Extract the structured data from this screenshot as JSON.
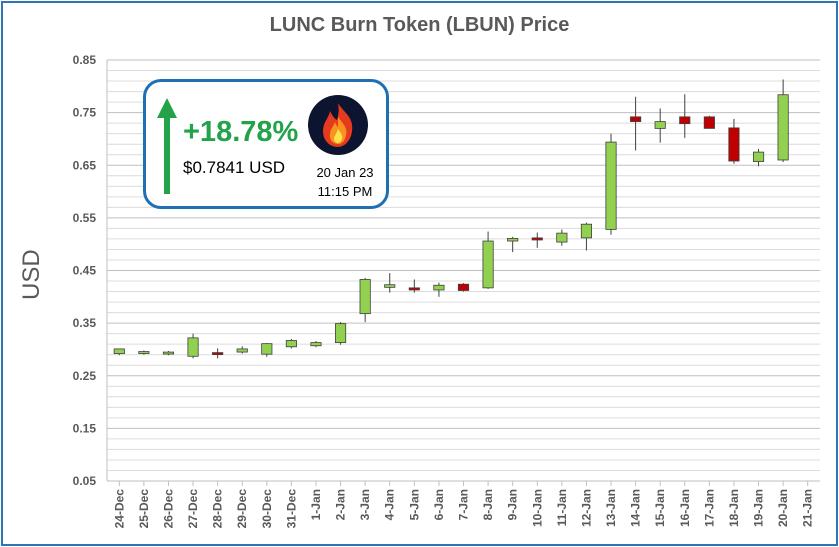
{
  "chart_data": {
    "type": "candlestick",
    "title": "LUNC Burn Token (LBUN) Price",
    "xlabel": "",
    "ylabel": "USD",
    "ylim": [
      0.05,
      0.85
    ],
    "yticks": [
      "0.85",
      "0.75",
      "0.65",
      "0.55",
      "0.45",
      "0.35",
      "0.25",
      "0.15",
      "0.05"
    ],
    "grid": true,
    "categories": [
      "24-Dec",
      "25-Dec",
      "26-Dec",
      "27-Dec",
      "28-Dec",
      "29-Dec",
      "30-Dec",
      "31-Dec",
      "1-Jan",
      "2-Jan",
      "3-Jan",
      "4-Jan",
      "5-Jan",
      "6-Jan",
      "7-Jan",
      "8-Jan",
      "9-Jan",
      "10-Jan",
      "11-Jan",
      "12-Jan",
      "13-Jan",
      "14-Jan",
      "15-Jan",
      "16-Jan",
      "17-Jan",
      "18-Jan",
      "19-Jan",
      "20-Jan",
      "21-Jan"
    ],
    "candles": [
      {
        "date": "24-Dec",
        "open": 0.292,
        "high": 0.301,
        "low": 0.289,
        "close": 0.301
      },
      {
        "date": "25-Dec",
        "open": 0.294,
        "high": 0.298,
        "low": 0.29,
        "close": 0.296
      },
      {
        "date": "26-Dec",
        "open": 0.293,
        "high": 0.297,
        "low": 0.289,
        "close": 0.295
      },
      {
        "date": "27-Dec",
        "open": 0.287,
        "high": 0.33,
        "low": 0.283,
        "close": 0.322
      },
      {
        "date": "28-Dec",
        "open": 0.294,
        "high": 0.302,
        "low": 0.283,
        "close": 0.292
      },
      {
        "date": "29-Dec",
        "open": 0.295,
        "high": 0.306,
        "low": 0.292,
        "close": 0.301
      },
      {
        "date": "30-Dec",
        "open": 0.291,
        "high": 0.312,
        "low": 0.286,
        "close": 0.311
      },
      {
        "date": "31-Dec",
        "open": 0.305,
        "high": 0.32,
        "low": 0.302,
        "close": 0.317
      },
      {
        "date": "1-Jan",
        "open": 0.307,
        "high": 0.316,
        "low": 0.304,
        "close": 0.313
      },
      {
        "date": "2-Jan",
        "open": 0.313,
        "high": 0.352,
        "low": 0.309,
        "close": 0.349
      },
      {
        "date": "3-Jan",
        "open": 0.368,
        "high": 0.436,
        "low": 0.352,
        "close": 0.433
      },
      {
        "date": "4-Jan",
        "open": 0.418,
        "high": 0.445,
        "low": 0.408,
        "close": 0.423
      },
      {
        "date": "5-Jan",
        "open": 0.417,
        "high": 0.433,
        "low": 0.408,
        "close": 0.413
      },
      {
        "date": "6-Jan",
        "open": 0.413,
        "high": 0.427,
        "low": 0.4,
        "close": 0.422
      },
      {
        "date": "7-Jan",
        "open": 0.424,
        "high": 0.426,
        "low": 0.41,
        "close": 0.412
      },
      {
        "date": "8-Jan",
        "open": 0.417,
        "high": 0.524,
        "low": 0.415,
        "close": 0.506
      },
      {
        "date": "9-Jan",
        "open": 0.506,
        "high": 0.514,
        "low": 0.485,
        "close": 0.511
      },
      {
        "date": "10-Jan",
        "open": 0.512,
        "high": 0.522,
        "low": 0.493,
        "close": 0.508
      },
      {
        "date": "11-Jan",
        "open": 0.504,
        "high": 0.528,
        "low": 0.497,
        "close": 0.521
      },
      {
        "date": "12-Jan",
        "open": 0.512,
        "high": 0.541,
        "low": 0.488,
        "close": 0.538
      },
      {
        "date": "13-Jan",
        "open": 0.528,
        "high": 0.71,
        "low": 0.518,
        "close": 0.694
      },
      {
        "date": "14-Jan",
        "open": 0.742,
        "high": 0.78,
        "low": 0.678,
        "close": 0.733
      },
      {
        "date": "15-Jan",
        "open": 0.72,
        "high": 0.758,
        "low": 0.693,
        "close": 0.733
      },
      {
        "date": "16-Jan",
        "open": 0.742,
        "high": 0.785,
        "low": 0.702,
        "close": 0.729
      },
      {
        "date": "17-Jan",
        "open": 0.742,
        "high": 0.744,
        "low": 0.72,
        "close": 0.72
      },
      {
        "date": "18-Jan",
        "open": 0.721,
        "high": 0.738,
        "low": 0.653,
        "close": 0.658
      },
      {
        "date": "19-Jan",
        "open": 0.657,
        "high": 0.681,
        "low": 0.648,
        "close": 0.675
      },
      {
        "date": "20-Jan",
        "open": 0.66,
        "high": 0.813,
        "low": 0.656,
        "close": 0.784
      }
    ],
    "up_color": "#92d050",
    "down_color": "#c00000",
    "border_color": "#2e75b6"
  },
  "callout": {
    "change": "+18.78%",
    "price": "$0.7841 USD",
    "date": "20 Jan 23",
    "time": "11:15 PM",
    "arrow_color": "#22a34a",
    "icon": "fire-icon"
  }
}
